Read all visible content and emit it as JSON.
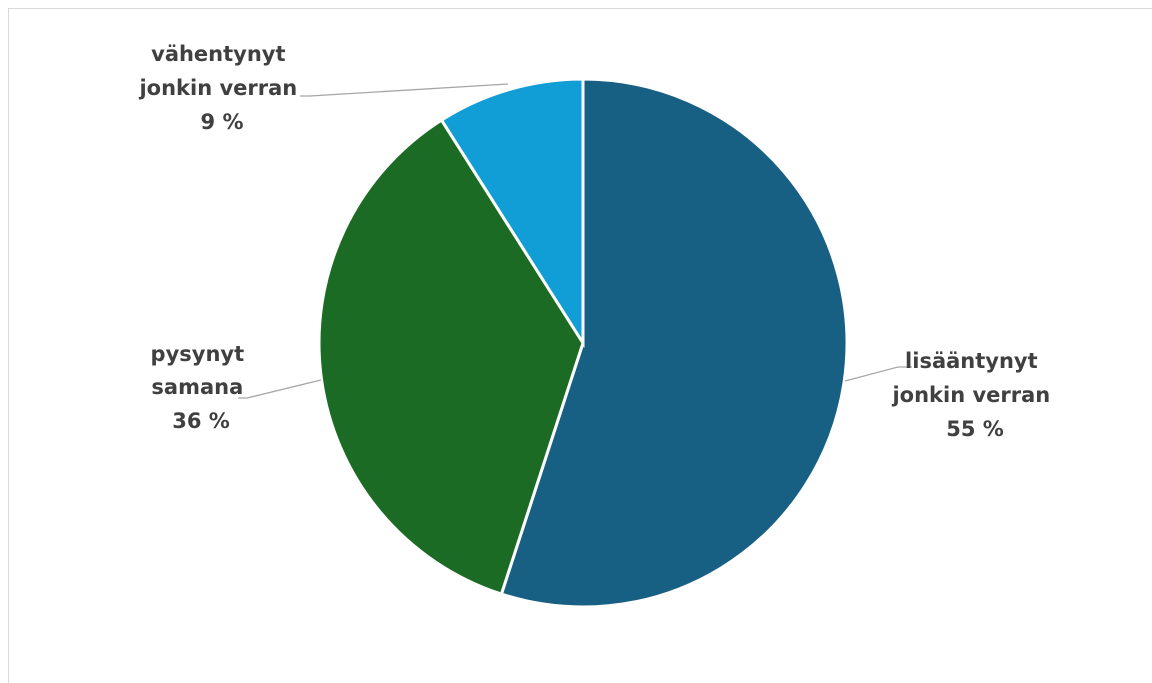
{
  "chart_data": {
    "type": "pie",
    "title": "",
    "start_angle_deg": 0,
    "direction": "clockwise",
    "legend": "none",
    "slices": [
      {
        "label_lines": [
          "lisääntynyt",
          "jonkin verran"
        ],
        "value": 55,
        "value_label": "55 %",
        "color": "#176083"
      },
      {
        "label_lines": [
          "pysynyt",
          "samana"
        ],
        "value": 36,
        "value_label": "36 %",
        "color": "#1b6b24"
      },
      {
        "label_lines": [
          "vähentynyt",
          "jonkin verran"
        ],
        "value": 9,
        "value_label": "9 %",
        "color": "#119dd5"
      }
    ]
  }
}
